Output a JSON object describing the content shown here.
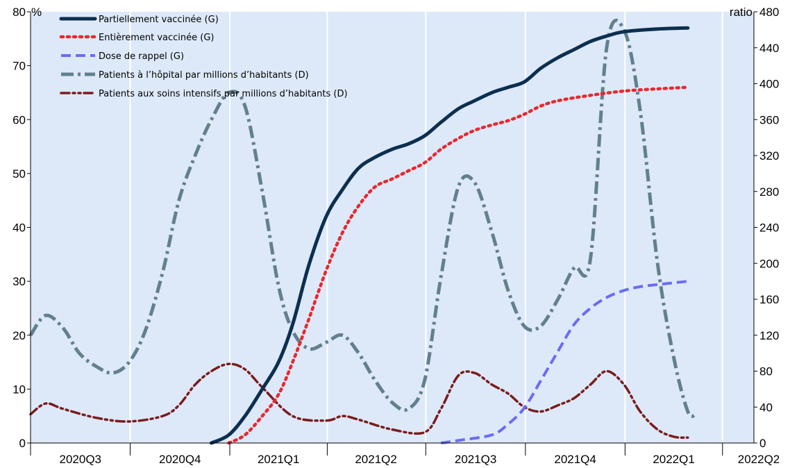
{
  "chart_data": {
    "type": "line",
    "x_axis": {
      "categories": [
        "2020Q3",
        "2020Q4",
        "2021Q1",
        "2021Q2",
        "2021Q3",
        "2021Q4",
        "2022Q1",
        "2022Q2"
      ],
      "start": "2020-07-01",
      "end": "2022-04-30"
    },
    "left_axis": {
      "unit": "%",
      "ylim": [
        0,
        80
      ],
      "ticks": [
        0,
        10,
        20,
        30,
        40,
        50,
        60,
        70,
        80
      ]
    },
    "right_axis": {
      "unit": "ratio",
      "ylim": [
        0,
        480
      ],
      "ticks": [
        0,
        40,
        80,
        120,
        160,
        200,
        240,
        280,
        320,
        360,
        400,
        440,
        480
      ]
    },
    "background": "#dde9f9",
    "legend_position": "top-left",
    "series": [
      {
        "name": "Partiellement vaccinée (G)",
        "axis": "left",
        "color": "#0d2f4f",
        "style": "solid",
        "points": [
          [
            "2020-12-15",
            0
          ],
          [
            "2020-12-31",
            1.5
          ],
          [
            "2021-01-15",
            5
          ],
          [
            "2021-01-31",
            10
          ],
          [
            "2021-02-15",
            15
          ],
          [
            "2021-02-28",
            22
          ],
          [
            "2021-03-15",
            33
          ],
          [
            "2021-03-31",
            42
          ],
          [
            "2021-04-15",
            47
          ],
          [
            "2021-04-30",
            51
          ],
          [
            "2021-05-15",
            53
          ],
          [
            "2021-05-31",
            54.5
          ],
          [
            "2021-06-15",
            55.5
          ],
          [
            "2021-06-30",
            57
          ],
          [
            "2021-07-15",
            59.5
          ],
          [
            "2021-07-31",
            62
          ],
          [
            "2021-08-15",
            63.5
          ],
          [
            "2021-08-31",
            65
          ],
          [
            "2021-09-15",
            66
          ],
          [
            "2021-09-30",
            67
          ],
          [
            "2021-10-15",
            69.5
          ],
          [
            "2021-10-31",
            71.5
          ],
          [
            "2021-11-15",
            73
          ],
          [
            "2021-11-30",
            74.5
          ],
          [
            "2021-12-15",
            75.5
          ],
          [
            "2021-12-31",
            76.3
          ],
          [
            "2022-01-31",
            76.8
          ],
          [
            "2022-02-28",
            77
          ]
        ]
      },
      {
        "name": "Entièrement vaccinée (G)",
        "axis": "left",
        "color": "#e8282e",
        "style": "dot",
        "points": [
          [
            "2020-12-31",
            0
          ],
          [
            "2021-01-15",
            1.5
          ],
          [
            "2021-01-31",
            5
          ],
          [
            "2021-02-15",
            9
          ],
          [
            "2021-02-28",
            15
          ],
          [
            "2021-03-15",
            23
          ],
          [
            "2021-03-31",
            32
          ],
          [
            "2021-04-15",
            39
          ],
          [
            "2021-04-30",
            44
          ],
          [
            "2021-05-15",
            47.5
          ],
          [
            "2021-05-31",
            49
          ],
          [
            "2021-06-15",
            50.5
          ],
          [
            "2021-06-30",
            52
          ],
          [
            "2021-07-15",
            54.5
          ],
          [
            "2021-07-31",
            56.5
          ],
          [
            "2021-08-15",
            58
          ],
          [
            "2021-08-31",
            59
          ],
          [
            "2021-09-15",
            59.8
          ],
          [
            "2021-09-30",
            61
          ],
          [
            "2021-10-15",
            62.5
          ],
          [
            "2021-10-31",
            63.5
          ],
          [
            "2021-11-30",
            64.5
          ],
          [
            "2021-12-31",
            65.3
          ],
          [
            "2022-01-31",
            65.7
          ],
          [
            "2022-02-28",
            66
          ]
        ]
      },
      {
        "name": "Dose de rappel (G)",
        "axis": "left",
        "color": "#6b6bf7",
        "style": "dash",
        "points": [
          [
            "2021-07-15",
            0
          ],
          [
            "2021-08-01",
            0.5
          ],
          [
            "2021-08-31",
            1.5
          ],
          [
            "2021-09-15",
            3.5
          ],
          [
            "2021-09-30",
            6.5
          ],
          [
            "2021-10-15",
            11.5
          ],
          [
            "2021-10-31",
            17
          ],
          [
            "2021-11-15",
            22
          ],
          [
            "2021-11-30",
            25
          ],
          [
            "2021-12-15",
            27
          ],
          [
            "2021-12-31",
            28.3
          ],
          [
            "2022-01-15",
            29
          ],
          [
            "2022-01-31",
            29.4
          ],
          [
            "2022-02-28",
            30
          ]
        ]
      },
      {
        "name": "Patients à l’hôpital par millions d’habitants (D)",
        "axis": "right",
        "color": "#62808f",
        "style": "dashdot",
        "points": [
          [
            "2020-07-01",
            120
          ],
          [
            "2020-07-15",
            142
          ],
          [
            "2020-07-31",
            128
          ],
          [
            "2020-08-15",
            100
          ],
          [
            "2020-08-31",
            85
          ],
          [
            "2020-09-15",
            78
          ],
          [
            "2020-09-30",
            90
          ],
          [
            "2020-10-15",
            125
          ],
          [
            "2020-10-31",
            190
          ],
          [
            "2020-11-15",
            270
          ],
          [
            "2020-11-30",
            320
          ],
          [
            "2020-12-15",
            360
          ],
          [
            "2020-12-31",
            390
          ],
          [
            "2021-01-15",
            375
          ],
          [
            "2021-01-31",
            280
          ],
          [
            "2021-02-15",
            175
          ],
          [
            "2021-02-28",
            125
          ],
          [
            "2021-03-15",
            105
          ],
          [
            "2021-03-31",
            112
          ],
          [
            "2021-04-15",
            120
          ],
          [
            "2021-04-30",
            100
          ],
          [
            "2021-05-15",
            70
          ],
          [
            "2021-05-31",
            45
          ],
          [
            "2021-06-15",
            38
          ],
          [
            "2021-06-30",
            70
          ],
          [
            "2021-07-15",
            185
          ],
          [
            "2021-07-31",
            285
          ],
          [
            "2021-08-15",
            290
          ],
          [
            "2021-08-31",
            235
          ],
          [
            "2021-09-15",
            170
          ],
          [
            "2021-09-30",
            130
          ],
          [
            "2021-10-15",
            130
          ],
          [
            "2021-10-31",
            160
          ],
          [
            "2021-11-15",
            195
          ],
          [
            "2021-11-30",
            205
          ],
          [
            "2021-12-15",
            440
          ],
          [
            "2021-12-31",
            460
          ],
          [
            "2022-01-15",
            370
          ],
          [
            "2022-01-31",
            200
          ],
          [
            "2022-02-15",
            95
          ],
          [
            "2022-02-28",
            35
          ],
          [
            "2022-03-07",
            32
          ]
        ]
      },
      {
        "name": "Patients aux soins intensifs par millions d’habitants (D)",
        "axis": "right",
        "color": "#7a1c1c",
        "style": "dashdotdot",
        "points": [
          [
            "2020-07-01",
            32
          ],
          [
            "2020-07-15",
            44
          ],
          [
            "2020-07-31",
            38
          ],
          [
            "2020-08-31",
            28
          ],
          [
            "2020-09-30",
            24
          ],
          [
            "2020-10-31",
            30
          ],
          [
            "2020-11-15",
            42
          ],
          [
            "2020-11-30",
            65
          ],
          [
            "2020-12-15",
            80
          ],
          [
            "2020-12-31",
            88
          ],
          [
            "2021-01-15",
            82
          ],
          [
            "2021-01-31",
            62
          ],
          [
            "2021-02-28",
            30
          ],
          [
            "2021-03-31",
            25
          ],
          [
            "2021-04-15",
            30
          ],
          [
            "2021-04-30",
            26
          ],
          [
            "2021-05-31",
            15
          ],
          [
            "2021-06-30",
            12
          ],
          [
            "2021-07-15",
            38
          ],
          [
            "2021-07-31",
            75
          ],
          [
            "2021-08-15",
            78
          ],
          [
            "2021-08-31",
            65
          ],
          [
            "2021-09-15",
            55
          ],
          [
            "2021-09-30",
            40
          ],
          [
            "2021-10-15",
            35
          ],
          [
            "2021-10-31",
            42
          ],
          [
            "2021-11-15",
            50
          ],
          [
            "2021-11-30",
            65
          ],
          [
            "2021-12-15",
            80
          ],
          [
            "2021-12-31",
            65
          ],
          [
            "2022-01-15",
            35
          ],
          [
            "2022-01-31",
            15
          ],
          [
            "2022-02-15",
            7
          ],
          [
            "2022-02-28",
            6
          ]
        ]
      }
    ]
  }
}
